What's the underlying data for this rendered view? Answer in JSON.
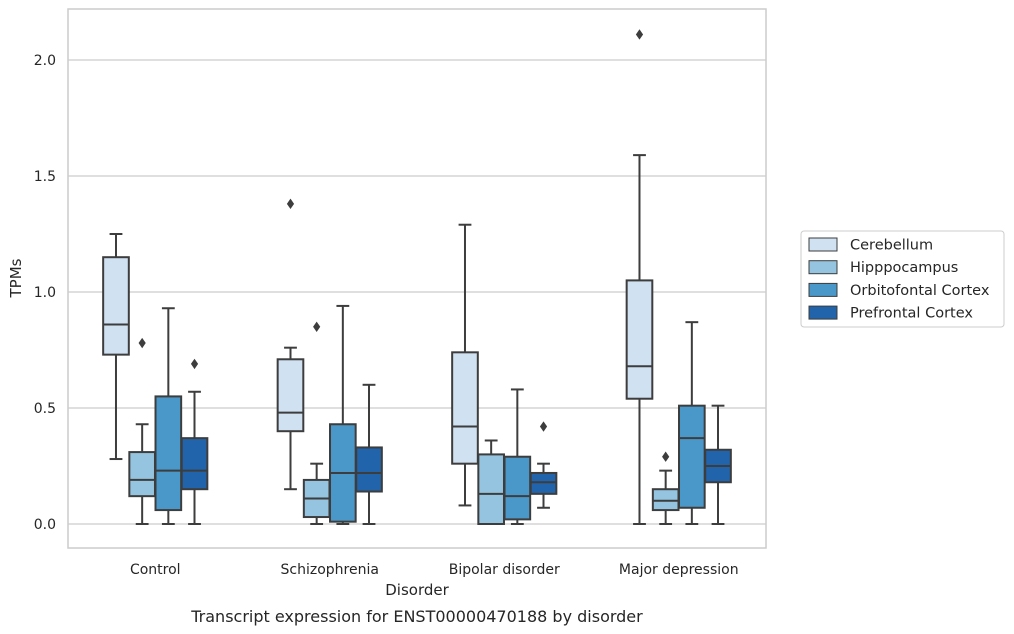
{
  "chart_data": {
    "type": "box",
    "caption": "Transcript expression for ENST00000470188 by disorder",
    "xlabel": "Disorder",
    "ylabel": "TPMs",
    "ylim": [
      -0.1,
      2.23
    ],
    "yticks": [
      0.0,
      0.5,
      1.0,
      1.5,
      2.0
    ],
    "ytick_labels": [
      "0.0",
      "0.5",
      "1.0",
      "1.5",
      "2.0"
    ],
    "grid": "horizontal",
    "legend_position": "right",
    "categories": [
      "Control",
      "Schizophrenia",
      "Bipolar disorder",
      "Major depression"
    ],
    "series": [
      {
        "name": "Cerebellum",
        "color": "#d0e1f2",
        "boxes": [
          {
            "whisker_low": 0.28,
            "q1": 0.73,
            "median": 0.86,
            "q3": 1.15,
            "whisker_high": 1.25,
            "outliers": []
          },
          {
            "whisker_low": 0.15,
            "q1": 0.4,
            "median": 0.48,
            "q3": 0.71,
            "whisker_high": 0.76,
            "outliers": [
              1.38
            ]
          },
          {
            "whisker_low": 0.08,
            "q1": 0.26,
            "median": 0.42,
            "q3": 0.74,
            "whisker_high": 1.29,
            "outliers": []
          },
          {
            "whisker_low": 0.0,
            "q1": 0.54,
            "median": 0.68,
            "q3": 1.05,
            "whisker_high": 1.59,
            "outliers": [
              2.11
            ]
          }
        ]
      },
      {
        "name": "Hipppocampus",
        "color": "#94c4df",
        "boxes": [
          {
            "whisker_low": 0.0,
            "q1": 0.12,
            "median": 0.19,
            "q3": 0.31,
            "whisker_high": 0.43,
            "outliers": [
              0.78
            ]
          },
          {
            "whisker_low": 0.0,
            "q1": 0.03,
            "median": 0.11,
            "q3": 0.19,
            "whisker_high": 0.26,
            "outliers": [
              0.85
            ]
          },
          {
            "whisker_low": 0.0,
            "q1": 0.0,
            "median": 0.13,
            "q3": 0.3,
            "whisker_high": 0.36,
            "outliers": []
          },
          {
            "whisker_low": 0.0,
            "q1": 0.06,
            "median": 0.1,
            "q3": 0.15,
            "whisker_high": 0.23,
            "outliers": [
              0.29
            ]
          }
        ]
      },
      {
        "name": "Orbitofontal Cortex",
        "color": "#4a98c9",
        "boxes": [
          {
            "whisker_low": 0.0,
            "q1": 0.06,
            "median": 0.23,
            "q3": 0.55,
            "whisker_high": 0.93,
            "outliers": []
          },
          {
            "whisker_low": 0.0,
            "q1": 0.01,
            "median": 0.22,
            "q3": 0.43,
            "whisker_high": 0.94,
            "outliers": []
          },
          {
            "whisker_low": 0.0,
            "q1": 0.02,
            "median": 0.12,
            "q3": 0.29,
            "whisker_high": 0.58,
            "outliers": []
          },
          {
            "whisker_low": 0.0,
            "q1": 0.07,
            "median": 0.37,
            "q3": 0.51,
            "whisker_high": 0.87,
            "outliers": []
          }
        ]
      },
      {
        "name": "Prefrontal Cortex",
        "color": "#2164ab",
        "boxes": [
          {
            "whisker_low": 0.0,
            "q1": 0.15,
            "median": 0.23,
            "q3": 0.37,
            "whisker_high": 0.57,
            "outliers": [
              0.69
            ]
          },
          {
            "whisker_low": 0.0,
            "q1": 0.14,
            "median": 0.22,
            "q3": 0.33,
            "whisker_high": 0.6,
            "outliers": []
          },
          {
            "whisker_low": 0.07,
            "q1": 0.13,
            "median": 0.18,
            "q3": 0.22,
            "whisker_high": 0.26,
            "outliers": [
              0.42
            ]
          },
          {
            "whisker_low": 0.0,
            "q1": 0.18,
            "median": 0.25,
            "q3": 0.32,
            "whisker_high": 0.51,
            "outliers": []
          }
        ]
      }
    ]
  }
}
